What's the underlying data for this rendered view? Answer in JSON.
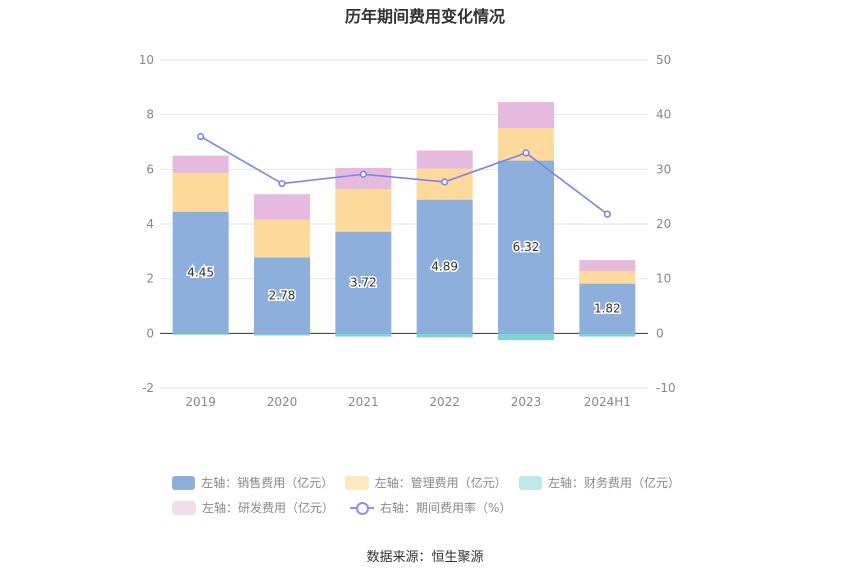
{
  "title": "历年期间费用变化情况",
  "source": "数据来源：恒生聚源",
  "colors": {
    "sales": "#8eafdc",
    "admin": "#fdd99b",
    "finance": "#7fd3d8",
    "rnd": "#e6bade",
    "rate": "#7b83ec"
  },
  "legend": {
    "sales": "左轴：销售费用（亿元）",
    "admin": "左轴：管理费用（亿元）",
    "finance": "左轴：财务费用（亿元）",
    "rnd": "左轴：研发费用（亿元）",
    "rate": "右轴：期间费用率（%）"
  },
  "chart_data": {
    "type": "bar",
    "stacked": true,
    "categories": [
      "2019",
      "2020",
      "2021",
      "2022",
      "2023",
      "2024H1"
    ],
    "y_left": {
      "min": -2,
      "max": 10,
      "ticks": [
        -2,
        0,
        2,
        4,
        6,
        8,
        10
      ]
    },
    "y_right": {
      "min": -10,
      "max": 50,
      "ticks": [
        -10,
        0,
        10,
        20,
        30,
        40,
        50
      ]
    },
    "series": [
      {
        "name": "左轴：销售费用（亿元）",
        "key": "sales",
        "axis": "left",
        "values": [
          4.45,
          2.78,
          3.72,
          4.89,
          6.32,
          1.82
        ],
        "labels": [
          "4.45",
          "2.78",
          "3.72",
          "4.89",
          "6.32",
          "1.82"
        ]
      },
      {
        "name": "左轴：管理费用（亿元）",
        "key": "admin",
        "axis": "left",
        "values": [
          1.42,
          1.38,
          1.56,
          1.13,
          1.19,
          0.46
        ]
      },
      {
        "name": "左轴：财务费用（亿元）",
        "key": "finance",
        "axis": "left",
        "values": [
          -0.05,
          -0.08,
          -0.12,
          -0.15,
          -0.25,
          -0.12
        ]
      },
      {
        "name": "左轴：研发费用（亿元）",
        "key": "rnd",
        "axis": "left",
        "values": [
          0.63,
          0.93,
          0.77,
          0.67,
          0.95,
          0.4
        ]
      },
      {
        "name": "右轴：期间费用率（%）",
        "key": "rate",
        "axis": "right",
        "type": "line",
        "values": [
          36.0,
          27.4,
          29.1,
          27.7,
          33.0,
          21.8
        ]
      }
    ],
    "grid": true,
    "legend_position": "bottom"
  }
}
